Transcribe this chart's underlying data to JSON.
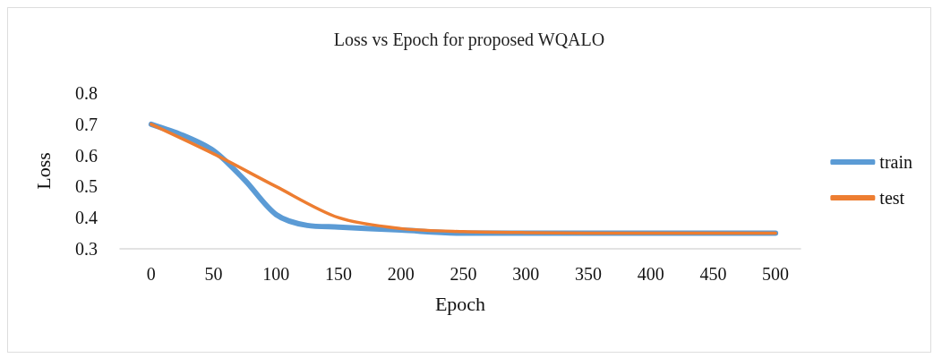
{
  "chart_data": {
    "type": "line",
    "title": "Loss vs Epoch for proposed WQALO",
    "xlabel": "Epoch",
    "ylabel": "Loss",
    "xlim": [
      -25,
      520
    ],
    "xticks": [
      0,
      50,
      100,
      150,
      200,
      250,
      300,
      350,
      400,
      450,
      500
    ],
    "ylim": [
      0.3,
      0.8
    ],
    "yticks": [
      0.3,
      0.4,
      0.5,
      0.6,
      0.7,
      0.8
    ],
    "series": [
      {
        "name": "train",
        "color": "#5b9bd5",
        "x": [
          0,
          25,
          50,
          75,
          100,
          125,
          150,
          200,
          250,
          300,
          400,
          500
        ],
        "values": [
          0.7,
          0.665,
          0.615,
          0.52,
          0.41,
          0.375,
          0.37,
          0.36,
          0.35,
          0.35,
          0.35,
          0.35
        ]
      },
      {
        "name": "test",
        "color": "#ed7d31",
        "x": [
          0,
          50,
          100,
          150,
          200,
          250,
          300,
          400,
          500
        ],
        "values": [
          0.7,
          0.605,
          0.5,
          0.4,
          0.365,
          0.355,
          0.352,
          0.35,
          0.35
        ]
      }
    ],
    "legend": "right",
    "grid": false,
    "marker": "none",
    "line_style": "solid"
  }
}
